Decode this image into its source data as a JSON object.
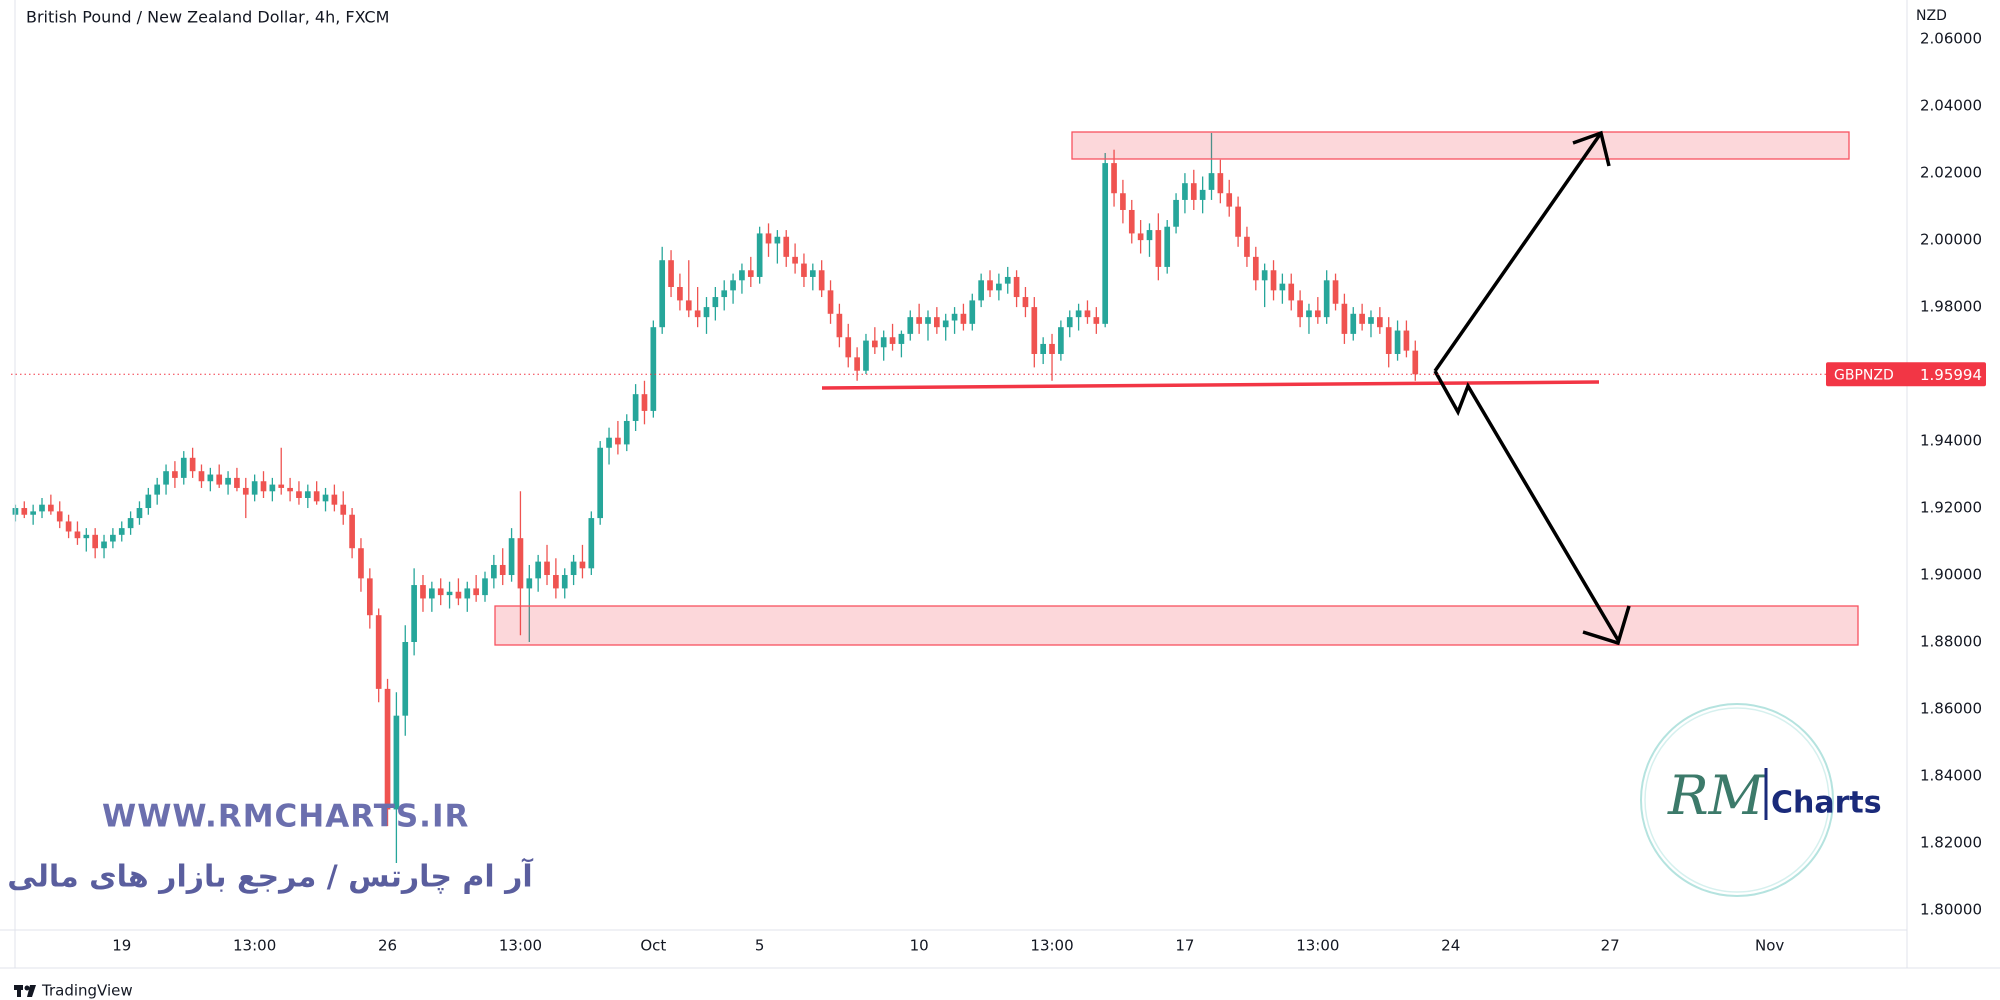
{
  "chart_data": {
    "type": "candlestick",
    "title": "British Pound / New Zealand Dollar, 4h, FXCM",
    "y_unit": "NZD",
    "colors": {
      "up": "#26a69a",
      "down": "#ef5350"
    },
    "grid": false,
    "ylim": [
      1.794,
      2.0717
    ],
    "yticks": [
      {
        "value": 1.8,
        "label": "1.80000"
      },
      {
        "value": 1.82,
        "label": "1.82000"
      },
      {
        "value": 1.84,
        "label": "1.84000"
      },
      {
        "value": 1.86,
        "label": "1.86000"
      },
      {
        "value": 1.88,
        "label": "1.88000"
      },
      {
        "value": 1.9,
        "label": "1.90000"
      },
      {
        "value": 1.92,
        "label": "1.92000"
      },
      {
        "value": 1.94,
        "label": "1.94000"
      },
      {
        "value": 1.96,
        "label": "1.96000"
      },
      {
        "value": 1.98,
        "label": "1.98000"
      },
      {
        "value": 2.0,
        "label": "2.00000"
      },
      {
        "value": 2.02,
        "label": "2.02000"
      },
      {
        "value": 2.04,
        "label": "2.04000"
      },
      {
        "value": 2.06,
        "label": "2.06000"
      }
    ],
    "categories": [
      null,
      null,
      null,
      null,
      null,
      null,
      null,
      null,
      null,
      null,
      null,
      null,
      "19",
      null,
      null,
      null,
      null,
      null,
      null,
      null,
      null,
      null,
      null,
      null,
      null,
      null,
      null,
      "13:00",
      null,
      null,
      null,
      null,
      null,
      null,
      null,
      null,
      null,
      null,
      null,
      null,
      null,
      null,
      "26",
      null,
      null,
      null,
      null,
      null,
      null,
      null,
      null,
      null,
      null,
      null,
      null,
      null,
      null,
      "13:00",
      null,
      null,
      null,
      null,
      null,
      null,
      null,
      null,
      null,
      null,
      null,
      null,
      null,
      null,
      "Oct",
      null,
      null,
      null,
      null,
      null,
      null,
      null,
      null,
      null,
      null,
      null,
      "5",
      null,
      null,
      null,
      null,
      null,
      null,
      null,
      null,
      null,
      null,
      null,
      null,
      null,
      null,
      null,
      null,
      null,
      "10",
      null,
      null,
      null,
      null,
      null,
      null,
      null,
      null,
      null,
      null,
      null,
      null,
      null,
      null,
      "13:00",
      null,
      null,
      null,
      null,
      null,
      null,
      null,
      null,
      null,
      null,
      null,
      null,
      null,
      null,
      "17",
      null,
      null,
      null,
      null,
      null,
      null,
      null,
      null,
      null,
      null,
      null,
      null,
      null,
      null,
      "13:00",
      null,
      null,
      null,
      null,
      null,
      null,
      null,
      null,
      null,
      null,
      null,
      null,
      null,
      null,
      "24",
      null,
      null,
      null,
      null,
      null,
      null,
      null,
      null,
      null,
      null,
      null,
      null,
      null,
      null,
      null,
      null,
      null,
      "27",
      null,
      null,
      null,
      null,
      null,
      null,
      null,
      null,
      null,
      null,
      null,
      null,
      null,
      null,
      null,
      null,
      null,
      "Nov",
      null,
      null,
      null,
      null,
      null,
      null,
      null,
      null,
      null,
      null,
      null,
      null,
      null,
      null,
      null
    ],
    "values": [
      [
        1.918,
        1.921,
        1.916,
        1.92
      ],
      [
        1.92,
        1.922,
        1.917,
        1.918
      ],
      [
        1.918,
        1.921,
        1.915,
        1.919
      ],
      [
        1.919,
        1.923,
        1.917,
        1.921
      ],
      [
        1.921,
        1.924,
        1.918,
        1.919
      ],
      [
        1.919,
        1.922,
        1.914,
        1.916
      ],
      [
        1.916,
        1.918,
        1.911,
        1.913
      ],
      [
        1.913,
        1.916,
        1.909,
        1.911
      ],
      [
        1.911,
        1.914,
        1.907,
        1.912
      ],
      [
        1.912,
        1.914,
        1.905,
        1.908
      ],
      [
        1.908,
        1.912,
        1.905,
        1.91
      ],
      [
        1.91,
        1.914,
        1.908,
        1.912
      ],
      [
        1.912,
        1.916,
        1.91,
        1.914
      ],
      [
        1.914,
        1.919,
        1.912,
        1.917
      ],
      [
        1.917,
        1.922,
        1.915,
        1.92
      ],
      [
        1.92,
        1.926,
        1.918,
        1.924
      ],
      [
        1.924,
        1.929,
        1.921,
        1.927
      ],
      [
        1.927,
        1.933,
        1.924,
        1.931
      ],
      [
        1.931,
        1.934,
        1.926,
        1.929
      ],
      [
        1.929,
        1.937,
        1.927,
        1.935
      ],
      [
        1.935,
        1.938,
        1.929,
        1.931
      ],
      [
        1.931,
        1.933,
        1.926,
        1.928
      ],
      [
        1.928,
        1.932,
        1.925,
        1.93
      ],
      [
        1.93,
        1.933,
        1.926,
        1.927
      ],
      [
        1.927,
        1.931,
        1.924,
        1.929
      ],
      [
        1.929,
        1.932,
        1.925,
        1.926
      ],
      [
        1.926,
        1.929,
        1.917,
        1.924
      ],
      [
        1.924,
        1.93,
        1.922,
        1.928
      ],
      [
        1.928,
        1.931,
        1.923,
        1.925
      ],
      [
        1.925,
        1.929,
        1.922,
        1.927
      ],
      [
        1.927,
        1.938,
        1.924,
        1.926
      ],
      [
        1.926,
        1.929,
        1.922,
        1.925
      ],
      [
        1.925,
        1.928,
        1.921,
        1.923
      ],
      [
        1.923,
        1.927,
        1.92,
        1.925
      ],
      [
        1.925,
        1.928,
        1.921,
        1.922
      ],
      [
        1.922,
        1.926,
        1.919,
        1.924
      ],
      [
        1.924,
        1.927,
        1.919,
        1.921
      ],
      [
        1.921,
        1.925,
        1.915,
        1.918
      ],
      [
        1.918,
        1.92,
        1.905,
        1.908
      ],
      [
        1.908,
        1.911,
        1.895,
        1.899
      ],
      [
        1.899,
        1.902,
        1.884,
        1.888
      ],
      [
        1.888,
        1.89,
        1.862,
        1.866
      ],
      [
        1.866,
        1.869,
        1.825,
        1.83
      ],
      [
        1.83,
        1.865,
        1.814,
        1.858
      ],
      [
        1.858,
        1.885,
        1.852,
        1.88
      ],
      [
        1.88,
        1.902,
        1.876,
        1.897
      ],
      [
        1.897,
        1.9,
        1.889,
        1.893
      ],
      [
        1.893,
        1.898,
        1.889,
        1.896
      ],
      [
        1.896,
        1.899,
        1.891,
        1.894
      ],
      [
        1.894,
        1.898,
        1.89,
        1.895
      ],
      [
        1.895,
        1.899,
        1.891,
        1.893
      ],
      [
        1.893,
        1.898,
        1.889,
        1.896
      ],
      [
        1.896,
        1.9,
        1.892,
        1.894
      ],
      [
        1.894,
        1.901,
        1.892,
        1.899
      ],
      [
        1.899,
        1.906,
        1.896,
        1.903
      ],
      [
        1.903,
        1.908,
        1.897,
        1.9
      ],
      [
        1.9,
        1.914,
        1.898,
        1.911
      ],
      [
        1.911,
        1.925,
        1.882,
        1.896
      ],
      [
        1.896,
        1.903,
        1.88,
        1.899
      ],
      [
        1.899,
        1.906,
        1.895,
        1.904
      ],
      [
        1.904,
        1.909,
        1.897,
        1.9
      ],
      [
        1.9,
        1.905,
        1.893,
        1.896
      ],
      [
        1.896,
        1.902,
        1.893,
        1.9
      ],
      [
        1.9,
        1.906,
        1.897,
        1.904
      ],
      [
        1.904,
        1.909,
        1.899,
        1.902
      ],
      [
        1.902,
        1.919,
        1.9,
        1.917
      ],
      [
        1.917,
        1.94,
        1.915,
        1.938
      ],
      [
        1.938,
        1.944,
        1.933,
        1.941
      ],
      [
        1.941,
        1.946,
        1.936,
        1.939
      ],
      [
        1.939,
        1.948,
        1.937,
        1.946
      ],
      [
        1.946,
        1.957,
        1.943,
        1.954
      ],
      [
        1.954,
        1.958,
        1.945,
        1.949
      ],
      [
        1.949,
        1.976,
        1.947,
        1.974
      ],
      [
        1.974,
        1.998,
        1.972,
        1.994
      ],
      [
        1.994,
        1.997,
        1.983,
        1.986
      ],
      [
        1.986,
        1.99,
        1.979,
        1.982
      ],
      [
        1.982,
        1.994,
        1.977,
        1.979
      ],
      [
        1.979,
        1.986,
        1.974,
        1.977
      ],
      [
        1.977,
        1.983,
        1.972,
        1.98
      ],
      [
        1.98,
        1.986,
        1.976,
        1.983
      ],
      [
        1.983,
        1.988,
        1.979,
        1.985
      ],
      [
        1.985,
        1.99,
        1.981,
        1.988
      ],
      [
        1.988,
        1.993,
        1.984,
        1.991
      ],
      [
        1.991,
        1.995,
        1.986,
        1.989
      ],
      [
        1.989,
        2.004,
        1.987,
        2.002
      ],
      [
        2.002,
        2.005,
        1.995,
        1.999
      ],
      [
        1.999,
        2.003,
        1.993,
        2.001
      ],
      [
        2.001,
        2.003,
        1.992,
        1.995
      ],
      [
        1.995,
        1.999,
        1.99,
        1.993
      ],
      [
        1.993,
        1.996,
        1.986,
        1.989
      ],
      [
        1.989,
        1.993,
        1.985,
        1.991
      ],
      [
        1.991,
        1.994,
        1.983,
        1.985
      ],
      [
        1.985,
        1.988,
        1.975,
        1.978
      ],
      [
        1.978,
        1.981,
        1.968,
        1.971
      ],
      [
        1.971,
        1.975,
        1.962,
        1.965
      ],
      [
        1.965,
        1.968,
        1.958,
        1.961
      ],
      [
        1.961,
        1.972,
        1.96,
        1.97
      ],
      [
        1.97,
        1.974,
        1.966,
        1.968
      ],
      [
        1.968,
        1.973,
        1.964,
        1.971
      ],
      [
        1.971,
        1.975,
        1.967,
        1.969
      ],
      [
        1.969,
        1.973,
        1.965,
        1.972
      ],
      [
        1.972,
        1.979,
        1.97,
        1.977
      ],
      [
        1.977,
        1.981,
        1.972,
        1.975
      ],
      [
        1.975,
        1.979,
        1.97,
        1.977
      ],
      [
        1.977,
        1.98,
        1.972,
        1.974
      ],
      [
        1.974,
        1.978,
        1.97,
        1.976
      ],
      [
        1.976,
        1.98,
        1.972,
        1.978
      ],
      [
        1.978,
        1.981,
        1.973,
        1.975
      ],
      [
        1.975,
        1.984,
        1.973,
        1.982
      ],
      [
        1.982,
        1.99,
        1.98,
        1.988
      ],
      [
        1.988,
        1.991,
        1.983,
        1.985
      ],
      [
        1.985,
        1.99,
        1.982,
        1.987
      ],
      [
        1.987,
        1.992,
        1.984,
        1.989
      ],
      [
        1.989,
        1.991,
        1.98,
        1.983
      ],
      [
        1.983,
        1.986,
        1.977,
        1.98
      ],
      [
        1.98,
        1.983,
        1.962,
        1.966
      ],
      [
        1.966,
        1.971,
        1.963,
        1.969
      ],
      [
        1.969,
        1.972,
        1.958,
        1.966
      ],
      [
        1.966,
        1.976,
        1.964,
        1.974
      ],
      [
        1.974,
        1.979,
        1.971,
        1.977
      ],
      [
        1.977,
        1.981,
        1.973,
        1.979
      ],
      [
        1.979,
        1.982,
        1.975,
        1.977
      ],
      [
        1.977,
        1.98,
        1.972,
        1.975
      ],
      [
        1.975,
        2.026,
        1.974,
        2.023
      ],
      [
        2.023,
        2.027,
        2.01,
        2.014
      ],
      [
        2.014,
        2.018,
        2.005,
        2.009
      ],
      [
        2.009,
        2.012,
        1.999,
        2.002
      ],
      [
        2.002,
        2.006,
        1.996,
        2.0
      ],
      [
        2.0,
        2.005,
        1.995,
        2.003
      ],
      [
        2.003,
        2.008,
        1.988,
        1.992
      ],
      [
        1.992,
        2.006,
        1.99,
        2.004
      ],
      [
        2.004,
        2.014,
        2.002,
        2.012
      ],
      [
        2.012,
        2.02,
        2.008,
        2.017
      ],
      [
        2.017,
        2.021,
        2.009,
        2.012
      ],
      [
        2.012,
        2.019,
        2.008,
        2.015
      ],
      [
        2.015,
        2.032,
        2.012,
        2.02
      ],
      [
        2.02,
        2.024,
        2.011,
        2.014
      ],
      [
        2.014,
        2.018,
        2.007,
        2.01
      ],
      [
        2.01,
        2.013,
        1.998,
        2.001
      ],
      [
        2.001,
        2.004,
        1.992,
        1.995
      ],
      [
        1.995,
        1.998,
        1.985,
        1.988
      ],
      [
        1.988,
        1.993,
        1.98,
        1.991
      ],
      [
        1.991,
        1.994,
        1.982,
        1.985
      ],
      [
        1.985,
        1.99,
        1.981,
        1.987
      ],
      [
        1.987,
        1.99,
        1.979,
        1.982
      ],
      [
        1.982,
        1.985,
        1.974,
        1.977
      ],
      [
        1.977,
        1.981,
        1.972,
        1.979
      ],
      [
        1.979,
        1.983,
        1.975,
        1.977
      ],
      [
        1.977,
        1.991,
        1.975,
        1.988
      ],
      [
        1.988,
        1.99,
        1.979,
        1.981
      ],
      [
        1.981,
        1.984,
        1.969,
        1.972
      ],
      [
        1.972,
        1.98,
        1.97,
        1.978
      ],
      [
        1.978,
        1.981,
        1.973,
        1.975
      ],
      [
        1.975,
        1.979,
        1.971,
        1.977
      ],
      [
        1.977,
        1.98,
        1.972,
        1.974
      ],
      [
        1.974,
        1.977,
        1.962,
        1.966
      ],
      [
        1.966,
        1.976,
        1.964,
        1.973
      ],
      [
        1.973,
        1.976,
        1.965,
        1.967
      ],
      [
        1.967,
        1.97,
        1.958,
        1.95994
      ],
      null,
      null,
      null,
      null,
      null,
      null,
      null,
      null,
      null,
      null,
      null,
      null,
      null,
      null,
      null,
      null,
      null,
      null,
      null,
      null,
      null,
      null,
      null,
      null,
      null,
      null,
      null,
      null,
      null,
      null,
      null,
      null,
      null,
      null,
      null,
      null,
      null,
      null,
      null,
      null,
      null,
      null,
      null,
      null,
      null,
      null,
      null,
      null,
      null,
      null,
      null,
      null,
      null,
      null,
      null
    ],
    "last_price": {
      "symbol": "GBPNZD",
      "value": 1.95994,
      "color": "#f23645"
    }
  },
  "watermark": {
    "url": "WWW.RMCHARTS.IR",
    "tagline": "آر ام چارتس / مرجع بازار های مالی"
  },
  "logo": {
    "mark": "RM",
    "text": "Charts"
  },
  "footer": {
    "brand": "TradingView"
  }
}
